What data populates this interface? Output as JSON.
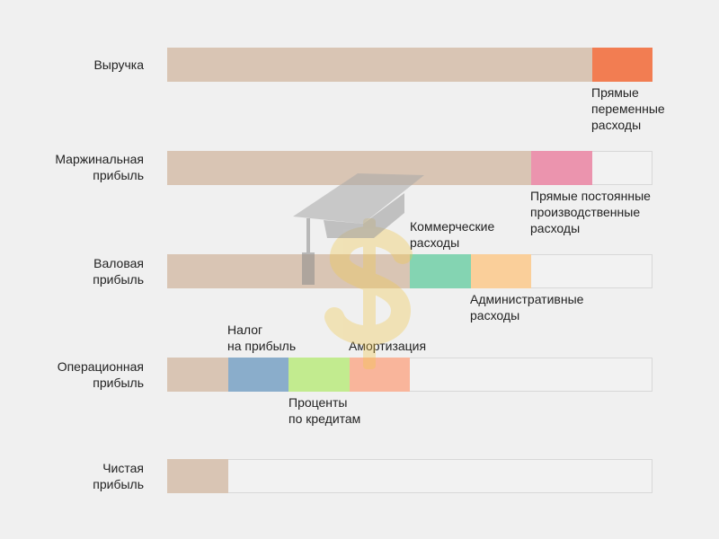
{
  "chart_data": {
    "type": "bar",
    "orientation": "horizontal",
    "stacked": true,
    "xlim": [
      0,
      8
    ],
    "rows": [
      {
        "label": "Выручка",
        "segments": [
          {
            "value": 7,
            "color": "#d9c5b4"
          },
          {
            "value": 1,
            "color": "#f27d52",
            "annotation": "Прямые\nпеременные\nрасходы"
          }
        ]
      },
      {
        "label": "Маржинальная\nприбыль",
        "segments": [
          {
            "value": 6,
            "color": "#d9c5b4"
          },
          {
            "value": 1,
            "color": "#eb94ae",
            "annotation": "Прямые постоянные\nпроизводственные\nрасходы"
          }
        ]
      },
      {
        "label": "Валовая\nприбыль",
        "segments": [
          {
            "value": 4,
            "color": "#d9c5b4"
          },
          {
            "value": 1,
            "color": "#84d4b2",
            "annotation": "Коммерческие\nрасходы"
          },
          {
            "value": 1,
            "color": "#facf9a",
            "annotation": "Административные\nрасходы"
          }
        ]
      },
      {
        "label": "Операционная\nприбыль",
        "segments": [
          {
            "value": 1,
            "color": "#d9c5b4"
          },
          {
            "value": 1,
            "color": "#8aadcb",
            "annotation": "Налог\nна прибыль"
          },
          {
            "value": 1,
            "color": "#c2eb8f",
            "annotation": "Проценты\nпо кредитам"
          },
          {
            "value": 1,
            "color": "#f9b59b",
            "annotation": "Амортизация"
          }
        ]
      },
      {
        "label": "Чистая\nприбыль",
        "segments": [
          {
            "value": 1,
            "color": "#d9c5b4"
          }
        ]
      }
    ]
  },
  "watermark": {
    "icons": [
      "graduation-cap-icon",
      "dollar-sign-icon"
    ]
  }
}
